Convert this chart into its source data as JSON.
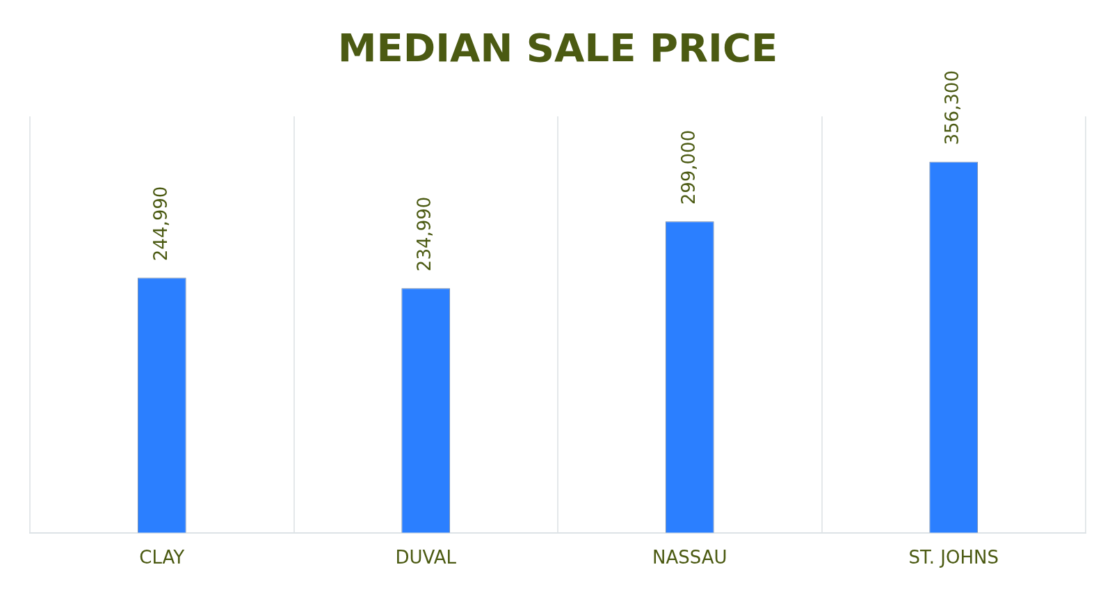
{
  "chart_data": {
    "type": "bar",
    "title": "MEDIAN SALE PRICE",
    "categories": [
      "CLAY",
      "DUVAL",
      "NASSAU",
      "ST. JOHNS"
    ],
    "values": [
      244990,
      234990,
      299000,
      356300
    ],
    "color": "#2b7fff",
    "value_labels": [
      "244,990",
      "234,990",
      "299,000",
      "356,300"
    ],
    "grid": "x",
    "legend": false
  }
}
